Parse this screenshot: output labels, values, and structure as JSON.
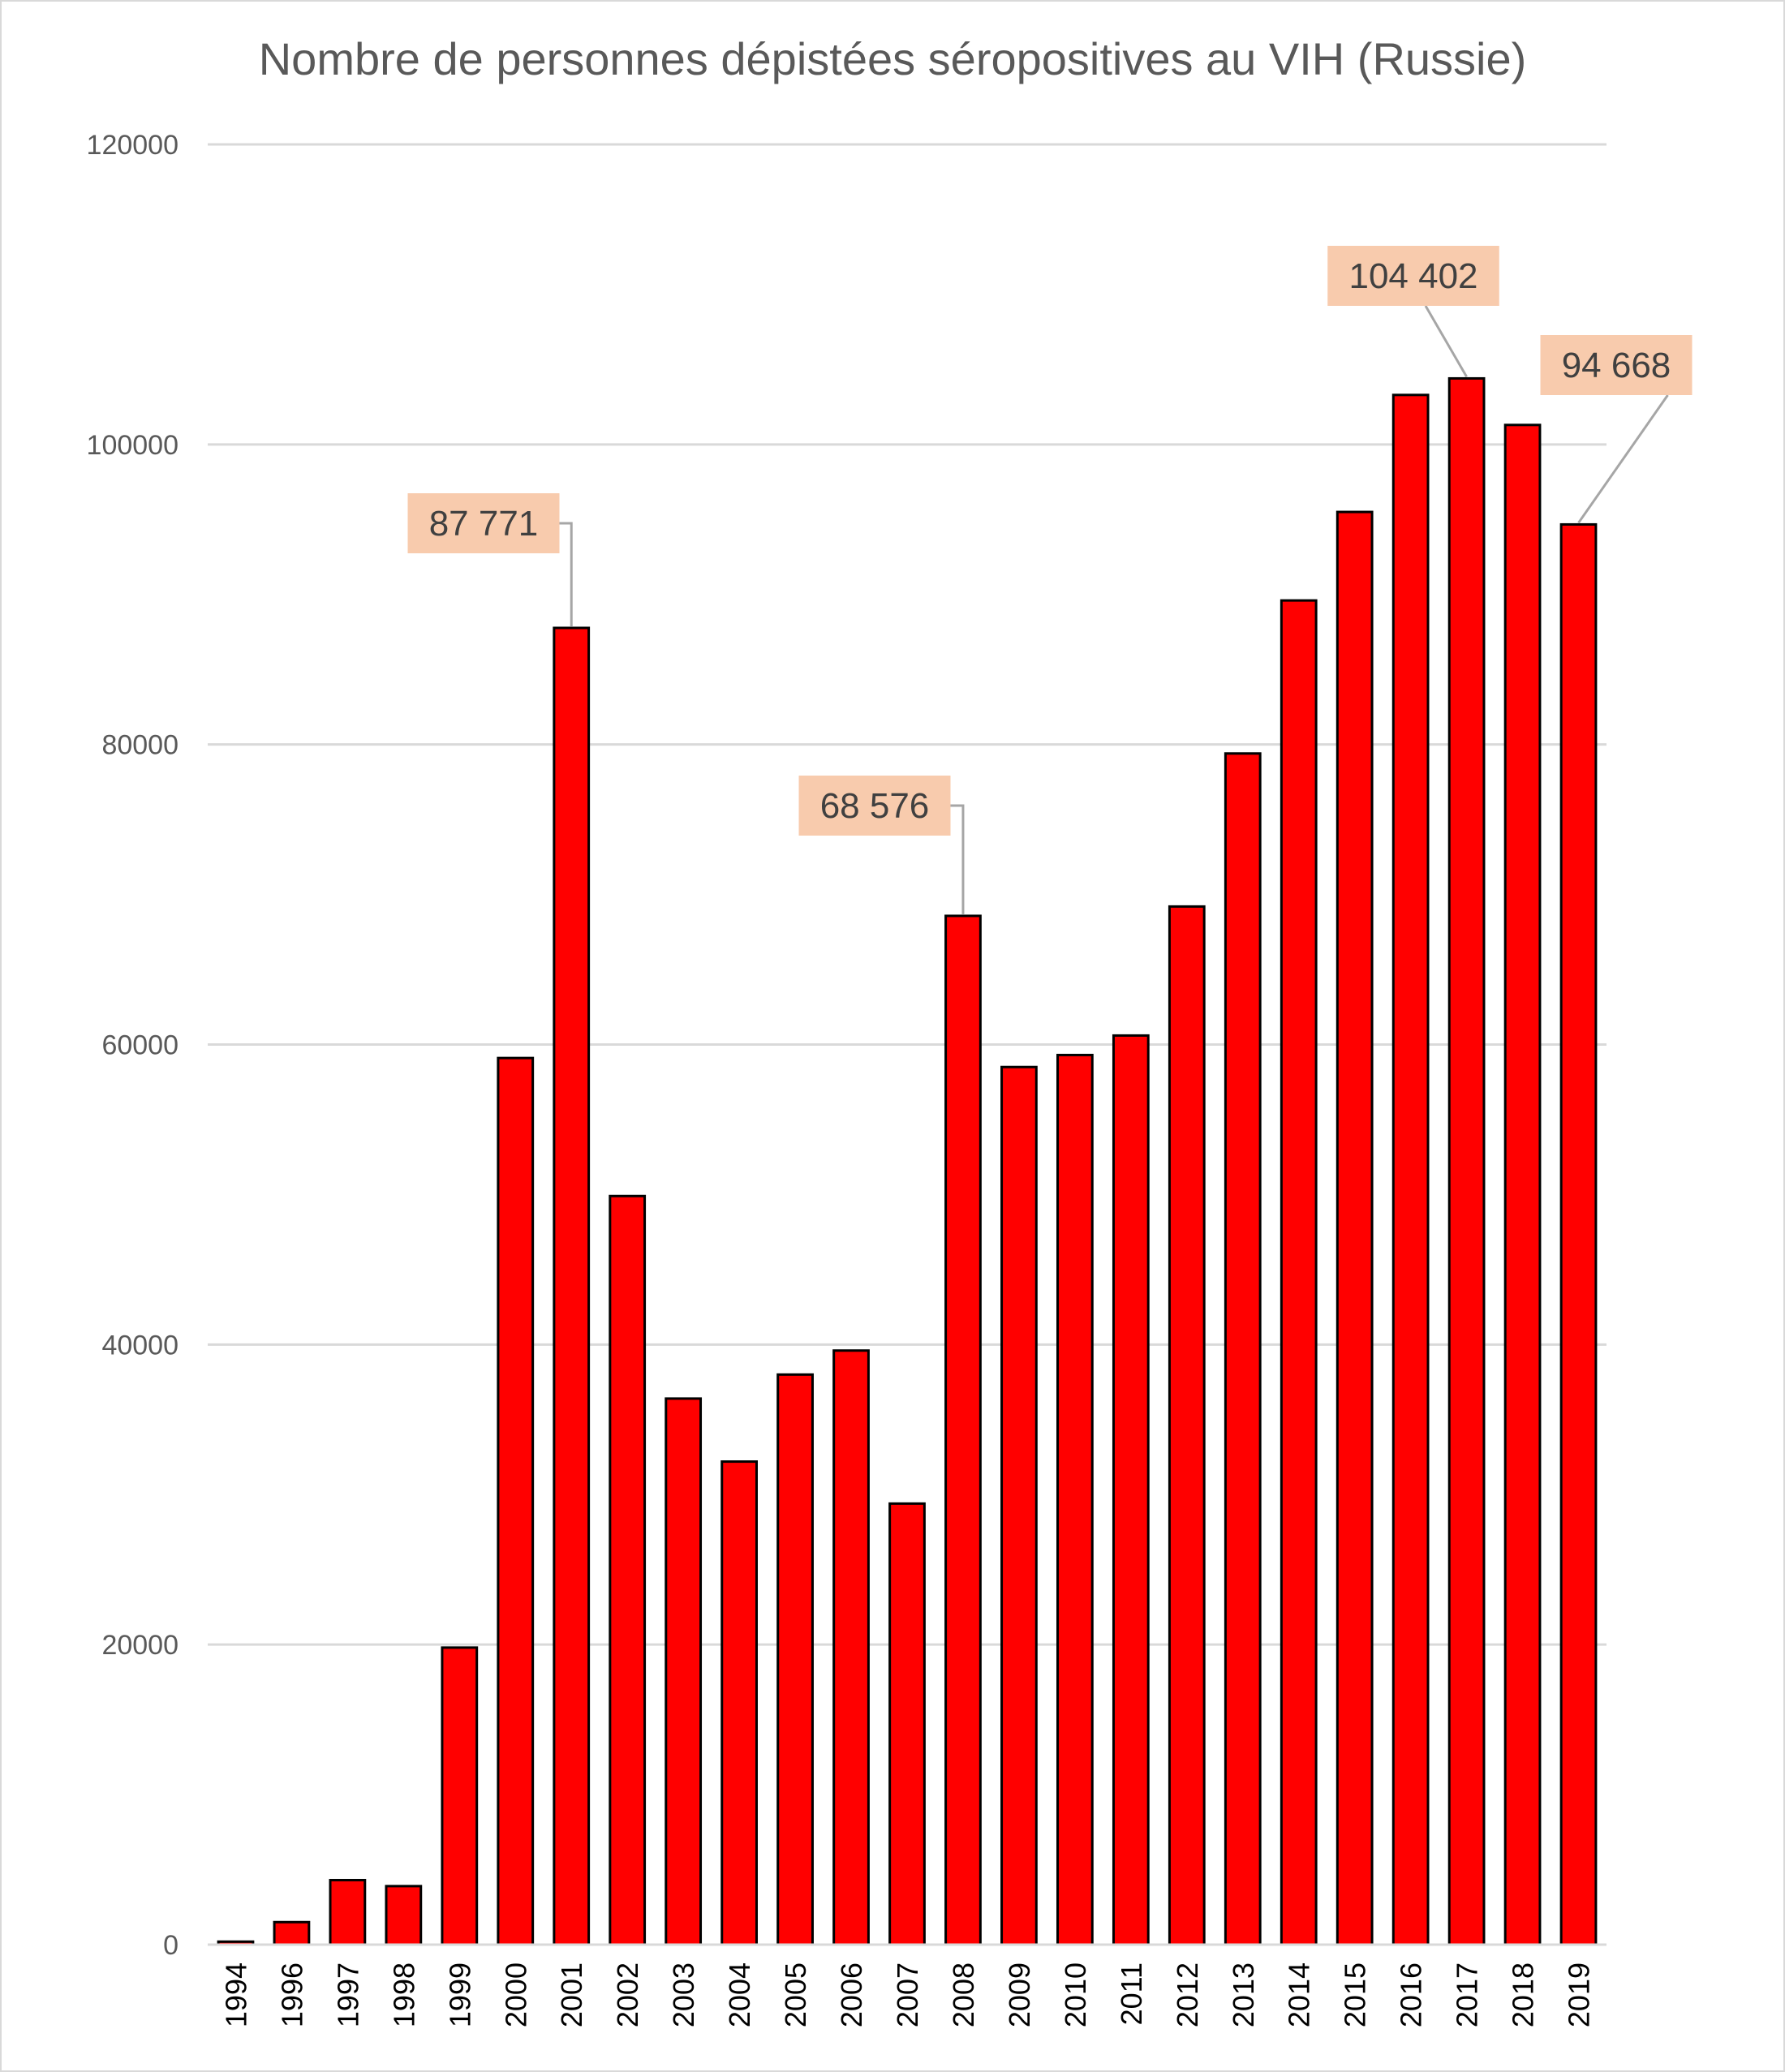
{
  "chart_data": {
    "type": "bar",
    "title": "Nombre de personnes dépistées séropositives au VIH (Russie)",
    "xlabel": "",
    "ylabel": "",
    "ylim": [
      0,
      120000
    ],
    "yticks": [
      0,
      20000,
      40000,
      60000,
      80000,
      100000,
      120000
    ],
    "grid": true,
    "bar_color": "#ff0000",
    "categories": [
      "1994",
      "1996",
      "1997",
      "1998",
      "1999",
      "2000",
      "2001",
      "2002",
      "2003",
      "2004",
      "2005",
      "2006",
      "2007",
      "2008",
      "2009",
      "2010",
      "2011",
      "2012",
      "2013",
      "2014",
      "2015",
      "2016",
      "2017",
      "2018",
      "2019"
    ],
    "values": [
      200,
      1500,
      4300,
      3900,
      19800,
      59100,
      87771,
      49900,
      36400,
      32200,
      38000,
      39600,
      29400,
      68576,
      58500,
      59300,
      60600,
      69200,
      79400,
      89600,
      95500,
      103300,
      104402,
      101300,
      94668
    ],
    "annotations": [
      {
        "category": "2001",
        "label": "87 771"
      },
      {
        "category": "2008",
        "label": "68 576"
      },
      {
        "category": "2017",
        "label": "104 402"
      },
      {
        "category": "2019",
        "label": "94 668"
      }
    ],
    "callout_color": "#f8cbad"
  }
}
